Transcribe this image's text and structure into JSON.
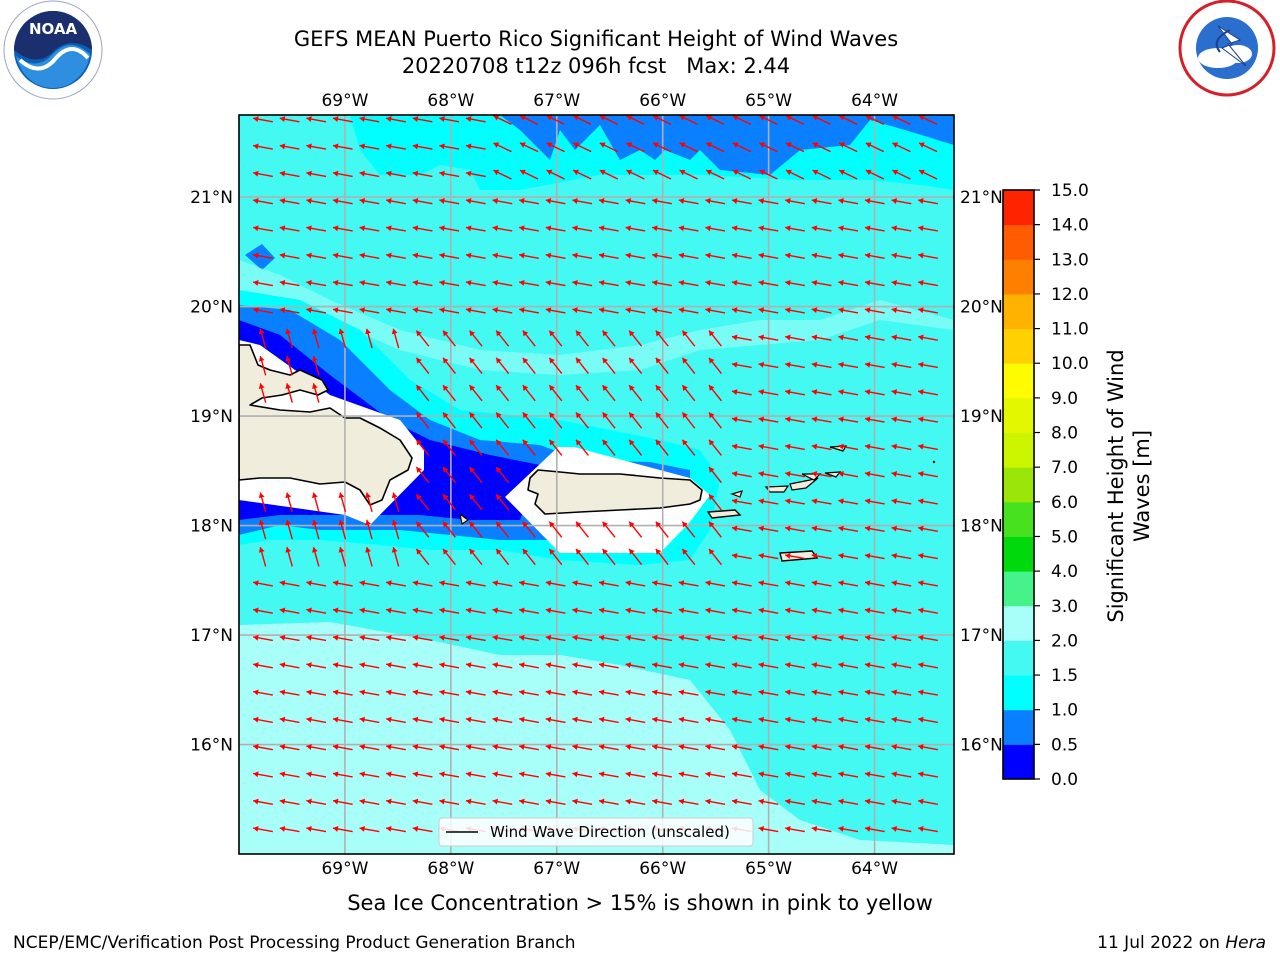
{
  "title": {
    "line1": "GEFS MEAN Puerto Rico Significant Height of Wind Waves",
    "line2": "20220708 t12z 096h fcst   Max: 2.44"
  },
  "logos": {
    "left": {
      "icon": "noaa-logo",
      "text": "NOAA",
      "ring_text": "NATIONAL OCEANIC AND ATMOSPHERIC ADMINISTRATION · U.S. DEPARTMENT OF COMMERCE"
    },
    "right": {
      "icon": "nws-logo",
      "ring_text": "NATIONAL WEATHER SERVICE"
    }
  },
  "map": {
    "lon_range": [
      -70.0,
      -63.25
    ],
    "lat_range": [
      15.0,
      21.75
    ],
    "lon_ticks": [
      "69°W",
      "68°W",
      "67°W",
      "66°W",
      "65°W",
      "64°W"
    ],
    "lon_tick_values": [
      -69,
      -68,
      -67,
      -66,
      -65,
      -64
    ],
    "lat_ticks": [
      "16°N",
      "17°N",
      "18°N",
      "19°N",
      "20°N",
      "21°N"
    ],
    "lat_tick_values": [
      16,
      17,
      18,
      19,
      20,
      21
    ],
    "grid": true,
    "arrow_color": "#ff0000",
    "arrow_direction": "westward (slightly south-westward near the islands)",
    "land_color": "#f0eddc",
    "regions": [
      "Hispaniola",
      "Puerto Rico",
      "Virgin Islands"
    ]
  },
  "legend": {
    "label": "Wind Wave Direction (unscaled)",
    "placement": "bottom-center"
  },
  "colorbar": {
    "label": "Significant Height of Wind Waves [m]",
    "ticks": [
      "0.0",
      "0.5",
      "1.0",
      "1.5",
      "2.0",
      "3.0",
      "4.0",
      "5.0",
      "6.0",
      "7.0",
      "8.0",
      "9.0",
      "10.0",
      "11.0",
      "12.0",
      "13.0",
      "14.0",
      "15.0"
    ],
    "colors": [
      "#0000ff",
      "#0a7fff",
      "#00ffff",
      "#44f9f2",
      "#a8fff9",
      "#46f38a",
      "#00d90c",
      "#47e120",
      "#9be508",
      "#ccf500",
      "#e3f700",
      "#fffb00",
      "#ffd100",
      "#ffb300",
      "#ff7f00",
      "#ff5b00",
      "#ff2400"
    ]
  },
  "caption": "Sea Ice Concentration > 15% is shown in pink to yellow",
  "footer": {
    "left": "NCEP/EMC/Verification Post Processing Product Generation Branch",
    "date": "11 Jul 2022 on ",
    "host": "Hera"
  }
}
